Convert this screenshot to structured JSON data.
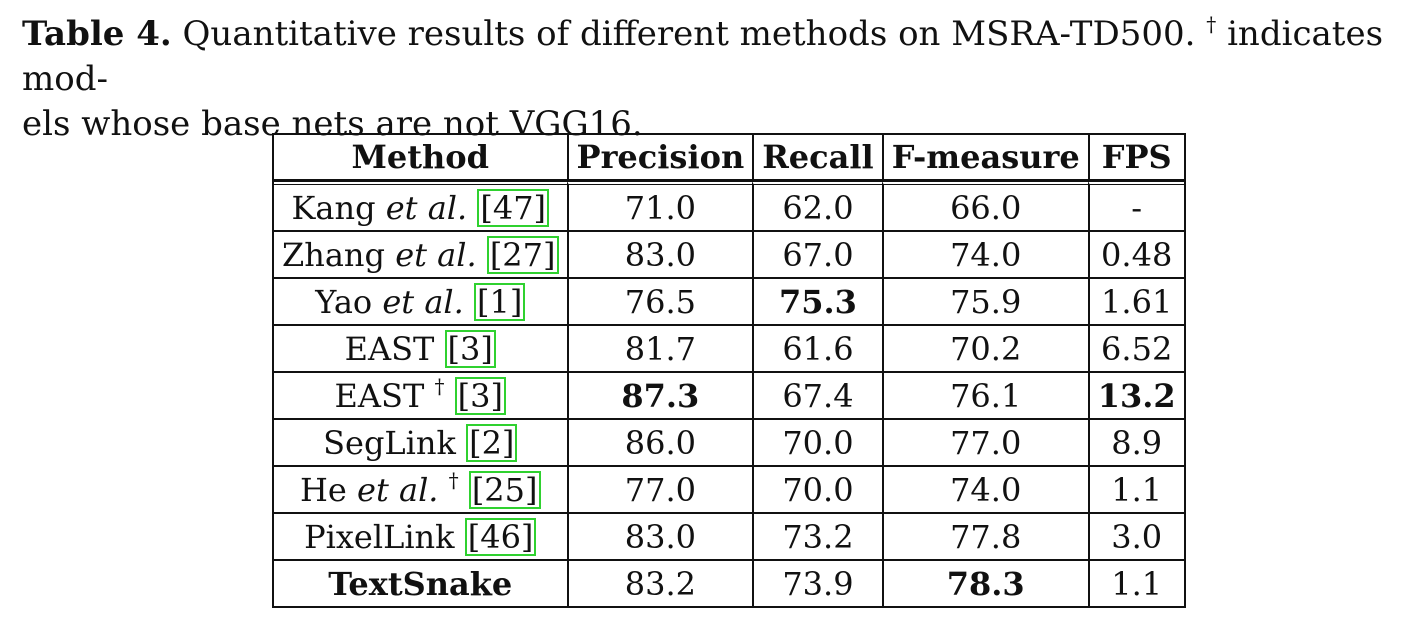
{
  "caption": {
    "label": "Table 4.",
    "text_before": "Quantitative results of different methods on MSRA-TD500.",
    "dagger": "†",
    "text_after": "indicates mod-",
    "line2": "els whose base nets are not VGG16."
  },
  "table": {
    "headers": [
      "Method",
      "Precision",
      "Recall",
      "F-measure",
      "FPS"
    ],
    "rows": [
      {
        "name": "Kang",
        "etal": "et al.",
        "dagger": "",
        "ref": "47",
        "precision": "71.0",
        "recall": "62.0",
        "fmeasure": "66.0",
        "fps": "-"
      },
      {
        "name": "Zhang",
        "etal": "et al.",
        "dagger": "",
        "ref": "27",
        "precision": "83.0",
        "recall": "67.0",
        "fmeasure": "74.0",
        "fps": "0.48"
      },
      {
        "name": "Yao",
        "etal": "et al.",
        "dagger": "",
        "ref": "1",
        "precision": "76.5",
        "recall": "75.3",
        "fmeasure": "75.9",
        "fps": "1.61"
      },
      {
        "name": "EAST",
        "etal": "",
        "dagger": "",
        "ref": "3",
        "precision": "81.7",
        "recall": "61.6",
        "fmeasure": "70.2",
        "fps": "6.52"
      },
      {
        "name": "EAST",
        "etal": "",
        "dagger": "†",
        "ref": "3",
        "precision": "87.3",
        "recall": "67.4",
        "fmeasure": "76.1",
        "fps": "13.2"
      },
      {
        "name": "SegLink",
        "etal": "",
        "dagger": "",
        "ref": "2",
        "precision": "86.0",
        "recall": "70.0",
        "fmeasure": "77.0",
        "fps": "8.9"
      },
      {
        "name": "He",
        "etal": "et al.",
        "dagger": "†",
        "ref": "25",
        "precision": "77.0",
        "recall": "70.0",
        "fmeasure": "74.0",
        "fps": "1.1"
      },
      {
        "name": "PixelLink",
        "etal": "",
        "dagger": "",
        "ref": "46",
        "precision": "83.0",
        "recall": "73.2",
        "fmeasure": "77.8",
        "fps": "3.0"
      },
      {
        "name": "TextSnake",
        "etal": "",
        "dagger": "",
        "ref": "",
        "precision": "83.2",
        "recall": "73.9",
        "fmeasure": "78.3",
        "fps": "1.1"
      }
    ],
    "bold_cells": [
      "2.recall",
      "4.precision",
      "4.fps",
      "8.name",
      "8.fmeasure"
    ]
  },
  "colors": {
    "reference_box": "#2fd12f",
    "text": "#111111"
  }
}
